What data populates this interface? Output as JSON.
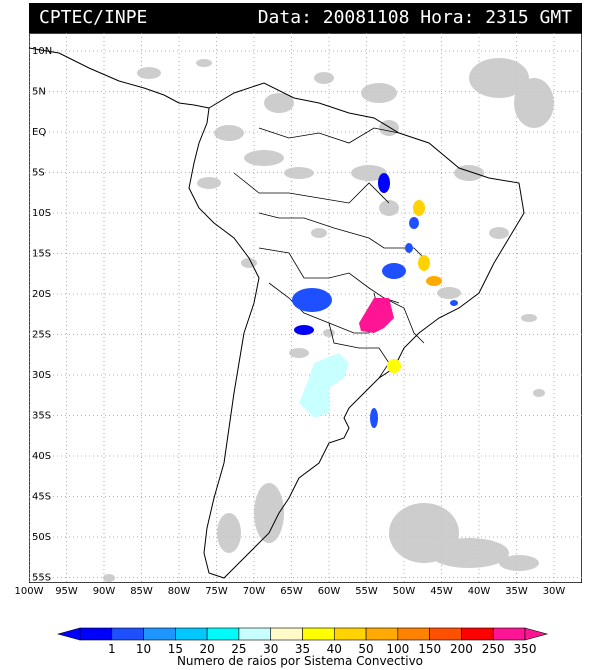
{
  "header": {
    "source": "CPTEC/INPE",
    "data_label": "Data: 20081108",
    "hora_label": "Hora: 2315 GMT"
  },
  "map": {
    "lat_labels": [
      "10N",
      "5N",
      "EQ",
      "5S",
      "10S",
      "15S",
      "20S",
      "25S",
      "30S",
      "35S",
      "40S",
      "45S",
      "50S",
      "55S"
    ],
    "lon_labels": [
      "100W",
      "95W",
      "90W",
      "85W",
      "80W",
      "75W",
      "70W",
      "65W",
      "60W",
      "55W",
      "50W",
      "45W",
      "40W",
      "35W",
      "30W"
    ]
  },
  "legend": {
    "values": [
      "1",
      "10",
      "15",
      "20",
      "25",
      "30",
      "35",
      "40",
      "50",
      "100",
      "150",
      "200",
      "250",
      "350"
    ],
    "colors": [
      "#0000ff",
      "#1e50ff",
      "#1e96ff",
      "#00c8ff",
      "#00fafa",
      "#c8ffff",
      "#fffac8",
      "#ffff00",
      "#ffd200",
      "#ffaa00",
      "#ff8200",
      "#ff5000",
      "#ff0000",
      "#ff1493"
    ],
    "caption": "Numero de raios por Sistema Convectivo"
  }
}
